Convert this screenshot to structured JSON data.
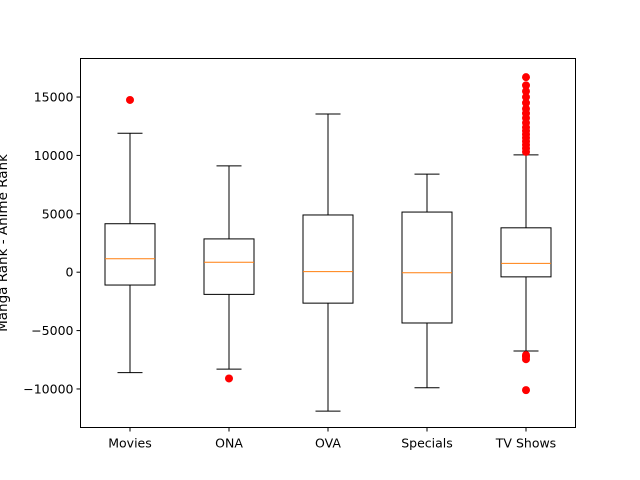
{
  "chart_data": {
    "type": "box",
    "title": "",
    "xlabel": "",
    "ylabel": "Manga Rank - Anime Rank",
    "categories": [
      "Movies",
      "ONA",
      "OVA",
      "Specials",
      "TV Shows"
    ],
    "ylim": [
      -13300,
      18300
    ],
    "yticks": [
      -10000,
      -5000,
      0,
      5000,
      10000,
      15000
    ],
    "ytick_labels": [
      "−10000",
      "−5000",
      "0",
      "5000",
      "10000",
      "15000"
    ],
    "grid": false,
    "colors": {
      "box": "#000000",
      "median": "#ff7f0e",
      "outlier": "#ff0000"
    },
    "boxes": [
      {
        "category": "Movies",
        "whisker_low": -8600,
        "q1": -1100,
        "median": 1150,
        "q3": 4150,
        "whisker_high": 11900,
        "outliers": [
          14750
        ]
      },
      {
        "category": "ONA",
        "whisker_low": -8300,
        "q1": -1900,
        "median": 850,
        "q3": 2850,
        "whisker_high": 9100,
        "outliers": [
          -9100
        ]
      },
      {
        "category": "OVA",
        "whisker_low": -11900,
        "q1": -2650,
        "median": 50,
        "q3": 4900,
        "whisker_high": 13550,
        "outliers": []
      },
      {
        "category": "Specials",
        "whisker_low": -9900,
        "q1": -4350,
        "median": -50,
        "q3": 5150,
        "whisker_high": 8400,
        "outliers": []
      },
      {
        "category": "TV Shows",
        "whisker_low": -6750,
        "q1": -400,
        "median": 750,
        "q3": 3800,
        "whisker_high": 10050,
        "outliers": [
          10300,
          10600,
          10900,
          11200,
          11500,
          11800,
          12100,
          12400,
          12800,
          13200,
          13600,
          14000,
          14500,
          15000,
          15500,
          16000,
          16700,
          -7100,
          -7250,
          -7450,
          -10100
        ]
      }
    ]
  }
}
